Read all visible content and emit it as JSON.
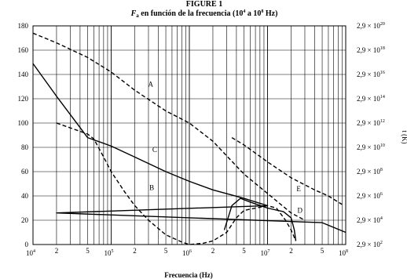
{
  "chart_data": {
    "type": "line",
    "title_top": "FIGURE 1",
    "title_base": "F",
    "title_sub": "a",
    "title_rest": " en función de la frecuencia (10",
    "title_exp1": "4",
    "title_mid": " a 10",
    "title_exp2": "8",
    "title_end": " Hz)",
    "xlabel": "Frecuencia (Hz)",
    "ylabel_right": "t (K)",
    "x_scale": "log",
    "xlim": [
      10000,
      100000000
    ],
    "ylim": [
      0,
      180
    ],
    "grid": true,
    "y_ticks": [
      "0",
      "20",
      "40",
      "60",
      "80",
      "100",
      "120",
      "140",
      "160",
      "180"
    ],
    "x_major_ticks": [
      {
        "mantissa": "10",
        "exp": "4"
      },
      {
        "mantissa": "10",
        "exp": "5"
      },
      {
        "mantissa": "10",
        "exp": "6"
      },
      {
        "mantissa": "10",
        "exp": "7"
      },
      {
        "mantissa": "10",
        "exp": "8"
      }
    ],
    "x_minor_labels": [
      "2",
      "5",
      "2",
      "5",
      "2",
      "5",
      "2",
      "5"
    ],
    "right_axis_ticks": [
      {
        "prefix": "2,9 × 10",
        "exp": "2"
      },
      {
        "prefix": "2,9 × 10",
        "exp": "4"
      },
      {
        "prefix": "2,9 × 10",
        "exp": "6"
      },
      {
        "prefix": "2,9 × 10",
        "exp": "8"
      },
      {
        "prefix": "2,9 × 10",
        "exp": "10"
      },
      {
        "prefix": "2,9 × 10",
        "exp": "12"
      },
      {
        "prefix": "2,9 × 10",
        "exp": "14"
      },
      {
        "prefix": "2,9 × 10",
        "exp": "16"
      },
      {
        "prefix": "2,9 × 10",
        "exp": "18"
      },
      {
        "prefix": "2,9 × 10",
        "exp": "20"
      }
    ],
    "series": [
      {
        "name": "A",
        "style": "dashed",
        "label_at": {
          "x": 320000,
          "y": 130
        },
        "points": [
          [
            10000,
            174
          ],
          [
            20000,
            166
          ],
          [
            50000,
            154
          ],
          [
            100000,
            142
          ],
          [
            200000,
            127
          ],
          [
            500000,
            110
          ],
          [
            1000000,
            100
          ],
          [
            2000000,
            85
          ],
          [
            5000000,
            58
          ],
          [
            10000000,
            42
          ],
          [
            20000000,
            26
          ],
          [
            30000000,
            20
          ]
        ]
      },
      {
        "name": "B",
        "style": "dashed",
        "label_at": {
          "x": 330000,
          "y": 45
        },
        "points": [
          [
            20000,
            100
          ],
          [
            50000,
            91
          ],
          [
            60000,
            87
          ],
          [
            80000,
            72
          ],
          [
            100000,
            60
          ],
          [
            150000,
            43
          ],
          [
            200000,
            32
          ],
          [
            300000,
            20
          ],
          [
            500000,
            8
          ],
          [
            800000,
            2
          ],
          [
            1000000,
            0
          ],
          [
            1500000,
            1
          ],
          [
            2000000,
            3
          ],
          [
            3000000,
            10
          ],
          [
            4000000,
            22
          ],
          [
            5000000,
            28
          ],
          [
            10000000,
            32
          ],
          [
            13000000,
            30
          ],
          [
            17000000,
            20
          ],
          [
            20000000,
            12
          ],
          [
            23000000,
            3
          ]
        ]
      },
      {
        "name": "C",
        "style": "solid",
        "label_at": {
          "x": 360000,
          "y": 76
        },
        "points": [
          [
            10000,
            149
          ],
          [
            20000,
            122
          ],
          [
            50000,
            88
          ],
          [
            100000,
            81
          ],
          [
            200000,
            72
          ],
          [
            500000,
            60
          ],
          [
            1000000,
            52
          ],
          [
            2000000,
            45
          ],
          [
            5000000,
            38
          ],
          [
            10000000,
            32
          ],
          [
            20000,
            26
          ],
          [
            50000000,
            18
          ],
          [
            100000000,
            10
          ]
        ]
      },
      {
        "name": "D",
        "style": "solid",
        "label_at": {
          "x": 26000000,
          "y": 26
        },
        "points": [
          [
            2800000,
            12
          ],
          [
            3500000,
            32
          ],
          [
            4500000,
            38
          ],
          [
            6000000,
            35
          ],
          [
            10000000,
            30
          ],
          [
            16000000,
            27
          ],
          [
            20000000,
            22
          ],
          [
            22000000,
            12
          ],
          [
            23000000,
            3
          ]
        ]
      },
      {
        "name": "E",
        "style": "dashed",
        "label_at": {
          "x": 25000000,
          "y": 44
        },
        "points": [
          [
            3500000,
            88
          ],
          [
            5000000,
            82
          ],
          [
            10000000,
            68
          ],
          [
            20000000,
            55
          ],
          [
            40000000,
            45
          ],
          [
            60000000,
            40
          ],
          [
            90000000,
            33
          ]
        ]
      }
    ]
  }
}
